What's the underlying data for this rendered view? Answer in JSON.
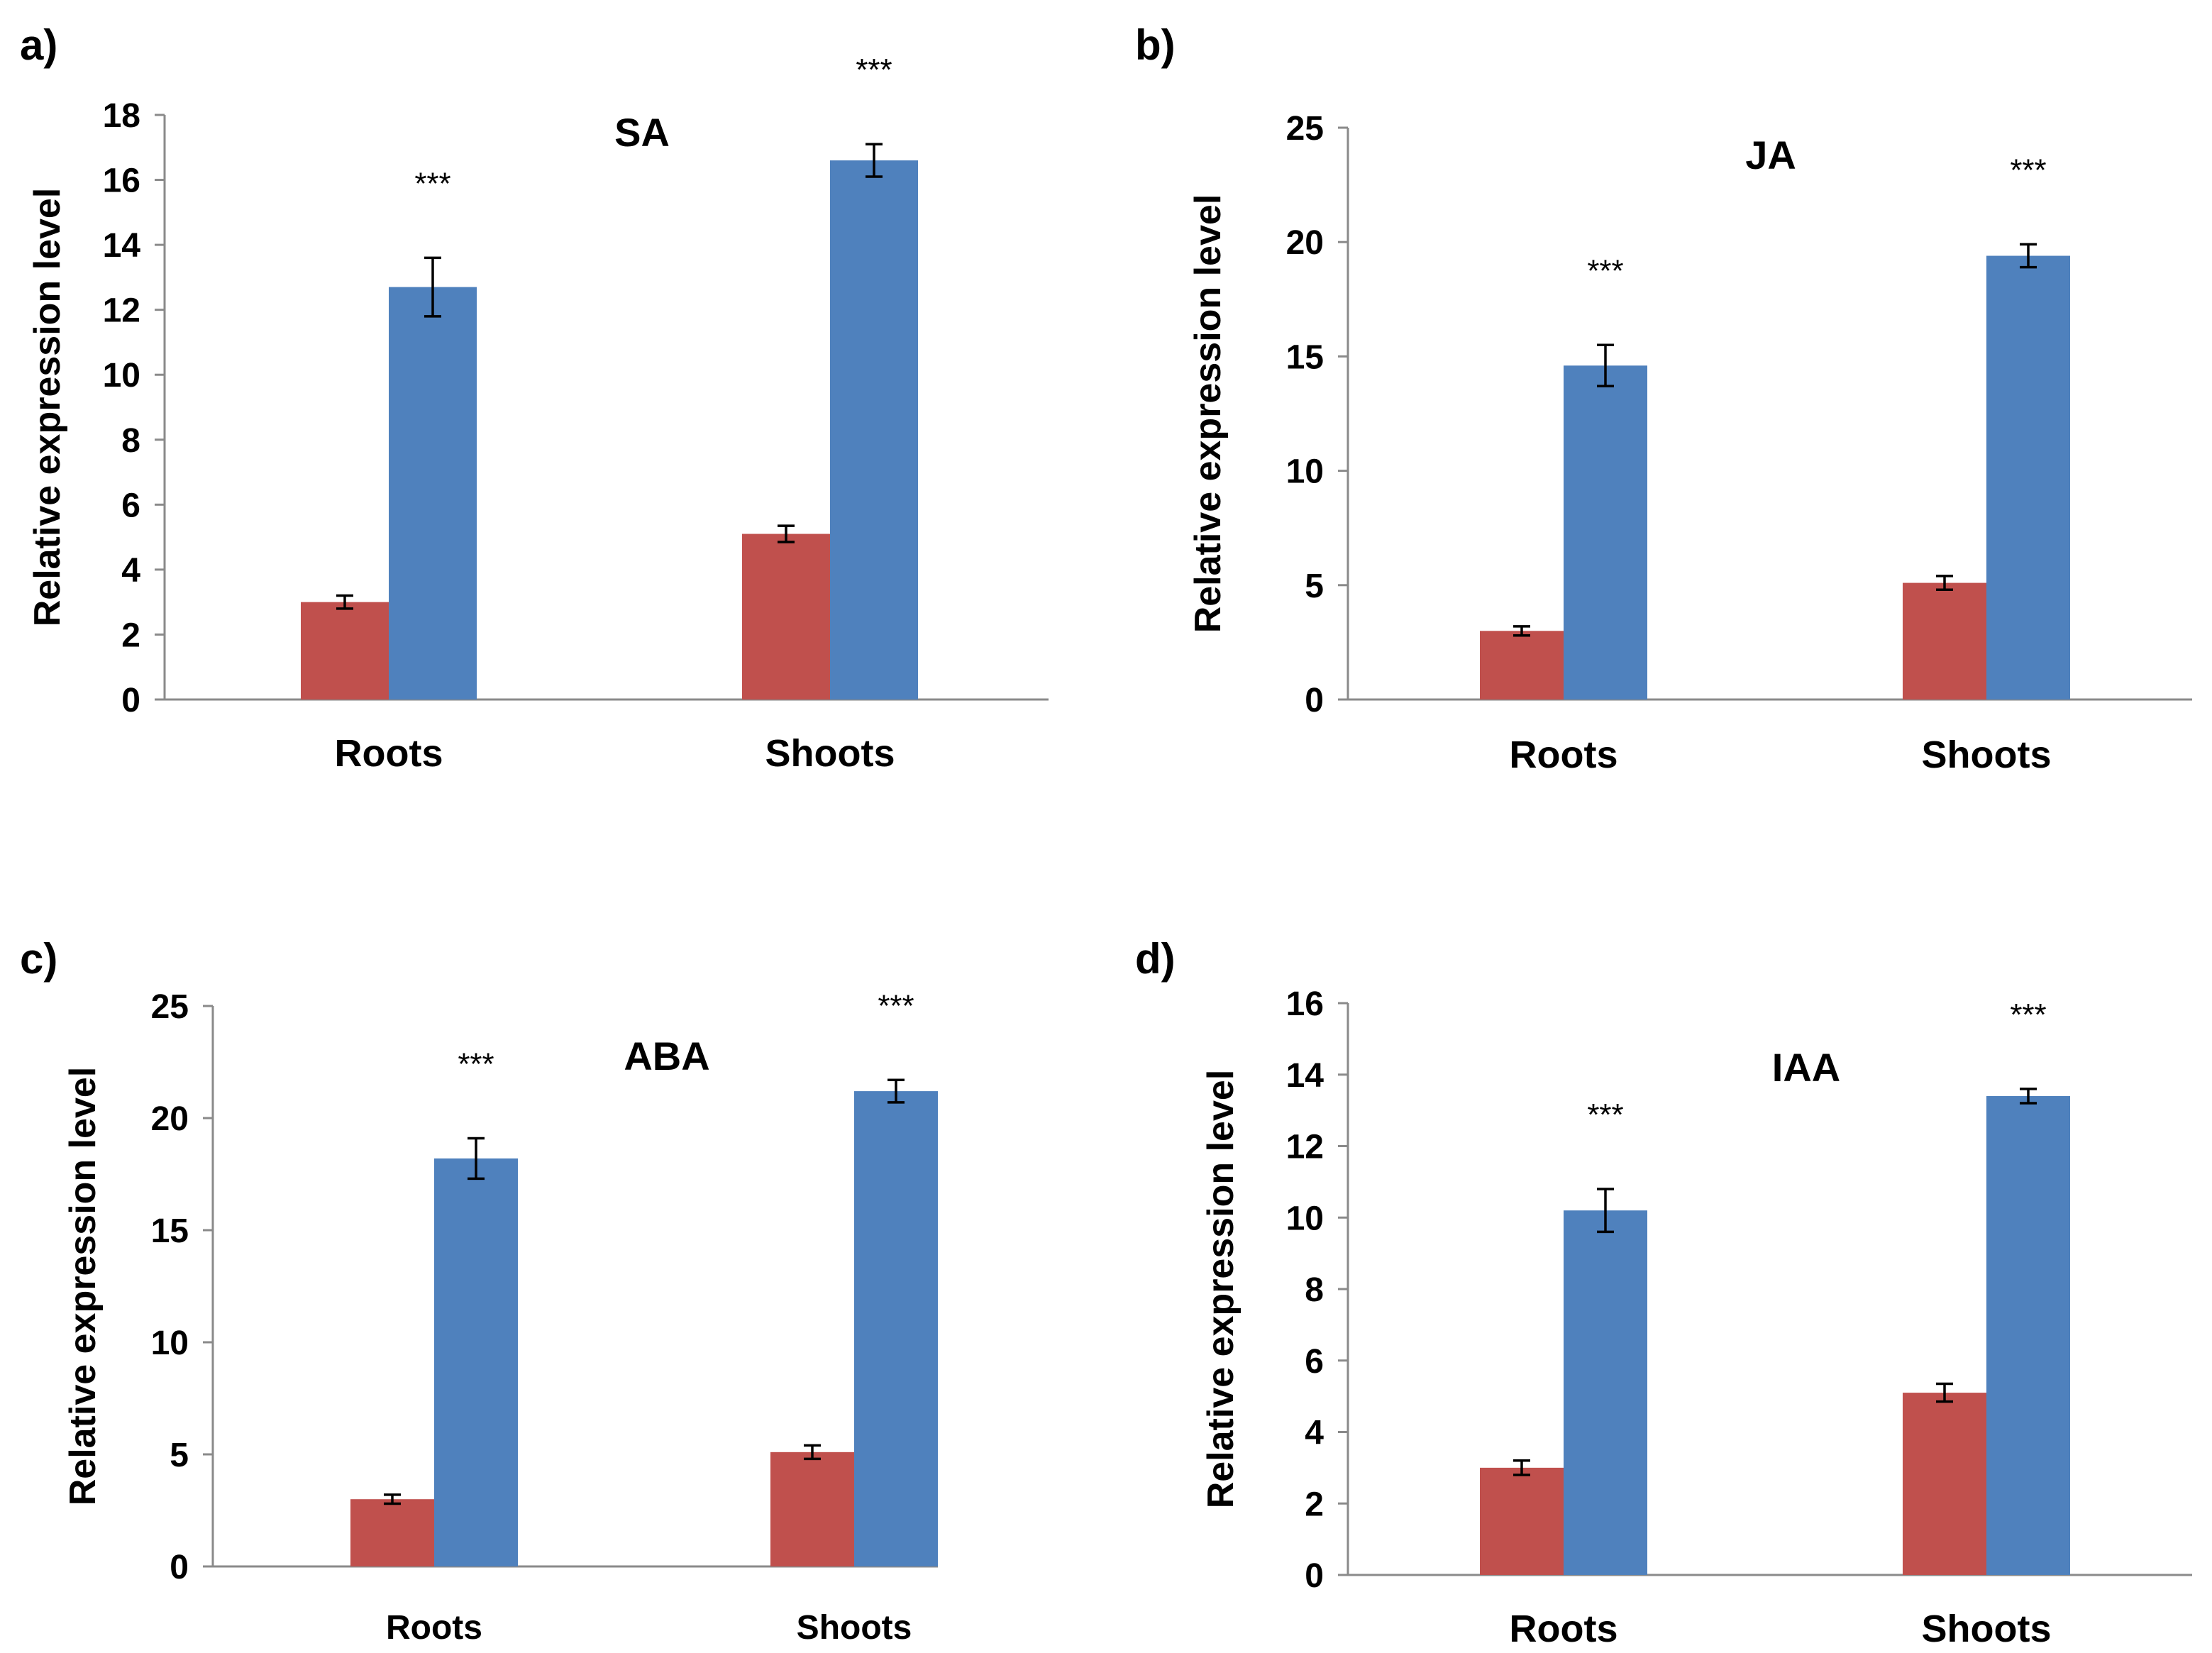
{
  "colors": {
    "series1": "#c0504d",
    "series2": "#4f81bd",
    "axis": "#8a8a8a"
  },
  "chart_data": [
    {
      "type": "bar",
      "panel": "a)",
      "title": "SA",
      "ylabel": "Relative expression level",
      "xlabel": "",
      "categories": [
        "Roots",
        "Shoots"
      ],
      "series": [
        {
          "name": "series1",
          "values": [
            3.0,
            5.1
          ],
          "errors": [
            0.2,
            0.25
          ]
        },
        {
          "name": "series2",
          "values": [
            12.7,
            16.6
          ],
          "errors": [
            0.9,
            0.5
          ]
        }
      ],
      "ylim": [
        0,
        18
      ],
      "yticks": [
        "0",
        "2",
        "4",
        "6",
        "8",
        "10",
        "12",
        "14",
        "16",
        "18"
      ],
      "significance": [
        "***",
        "***"
      ],
      "grid": false
    },
    {
      "type": "bar",
      "panel": "b)",
      "title": "JA",
      "ylabel": "Relative expression level",
      "xlabel": "",
      "categories": [
        "Roots",
        "Shoots"
      ],
      "series": [
        {
          "name": "series1",
          "values": [
            3.0,
            5.1
          ],
          "errors": [
            0.2,
            0.3
          ]
        },
        {
          "name": "series2",
          "values": [
            14.6,
            19.4
          ],
          "errors": [
            0.9,
            0.5
          ]
        }
      ],
      "ylim": [
        0,
        25
      ],
      "yticks": [
        "0",
        "5",
        "10",
        "15",
        "20",
        "25"
      ],
      "significance": [
        "***",
        "***"
      ],
      "grid": false
    },
    {
      "type": "bar",
      "panel": "c)",
      "title": "ABA",
      "ylabel": "Relative expression level",
      "xlabel": "",
      "categories": [
        "Roots",
        "Shoots"
      ],
      "series": [
        {
          "name": "series1",
          "values": [
            3.0,
            5.1
          ],
          "errors": [
            0.2,
            0.3
          ]
        },
        {
          "name": "series2",
          "values": [
            18.2,
            21.2
          ],
          "errors": [
            0.9,
            0.5
          ]
        }
      ],
      "ylim": [
        0,
        25
      ],
      "yticks": [
        "0",
        "5",
        "10",
        "15",
        "20",
        "25"
      ],
      "significance": [
        "***",
        "***"
      ],
      "grid": false
    },
    {
      "type": "bar",
      "panel": "d)",
      "title": "IAA",
      "ylabel": "Relative expression level",
      "xlabel": "",
      "categories": [
        "Roots",
        "Shoots"
      ],
      "series": [
        {
          "name": "series1",
          "values": [
            3.0,
            5.1
          ],
          "errors": [
            0.2,
            0.25
          ]
        },
        {
          "name": "series2",
          "values": [
            10.2,
            13.4
          ],
          "errors": [
            0.6,
            0.2
          ]
        }
      ],
      "ylim": [
        0,
        16
      ],
      "yticks": [
        "0",
        "2",
        "4",
        "6",
        "8",
        "10",
        "12",
        "14",
        "16"
      ],
      "significance": [
        "***",
        "***"
      ],
      "grid": false
    }
  ]
}
